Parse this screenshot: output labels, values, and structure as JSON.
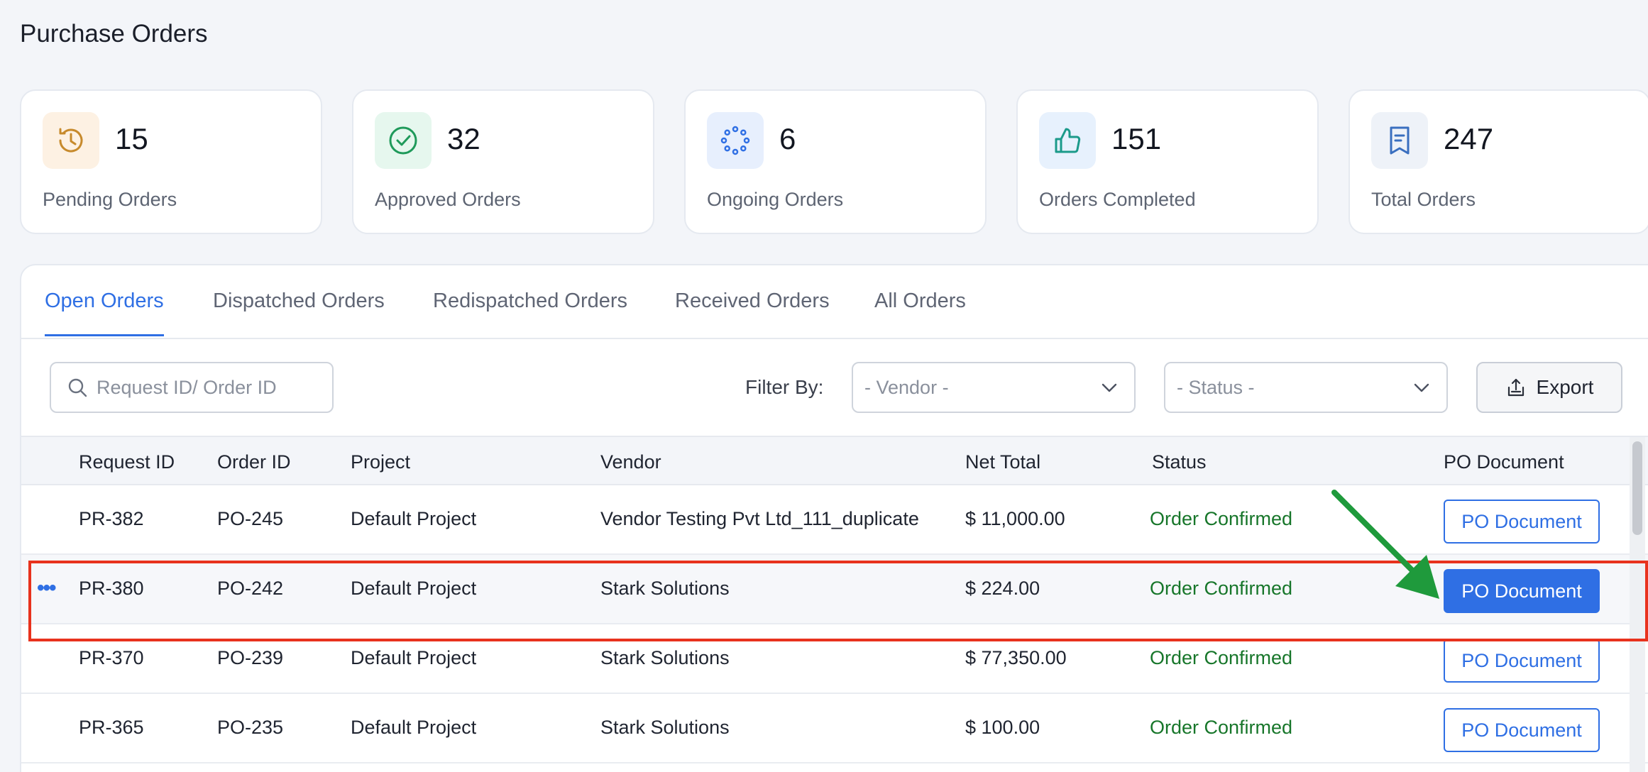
{
  "page": {
    "title": "Purchase Orders"
  },
  "stats": [
    {
      "value": "15",
      "label": "Pending Orders",
      "icon": "history-clock-icon",
      "icon_bg": "#fdf1e3",
      "icon_color": "#c78a2c"
    },
    {
      "value": "32",
      "label": "Approved Orders",
      "icon": "check-circle-icon",
      "icon_bg": "#e6f7ee",
      "icon_color": "#1f9a5a"
    },
    {
      "value": "6",
      "label": "Ongoing Orders",
      "icon": "loading-dots-icon",
      "icon_bg": "#e7effd",
      "icon_color": "#2f6fe4"
    },
    {
      "value": "151",
      "label": "Orders Completed",
      "icon": "thumbs-up-icon",
      "icon_bg": "#e7f1fd",
      "icon_color": "#1b9a8a"
    },
    {
      "value": "247",
      "label": "Total Orders",
      "icon": "receipt-icon",
      "icon_bg": "#eef2f8",
      "icon_color": "#3a6fbf"
    }
  ],
  "tabs": [
    {
      "label": "Open Orders",
      "active": true
    },
    {
      "label": "Dispatched Orders",
      "active": false
    },
    {
      "label": "Redispatched Orders",
      "active": false
    },
    {
      "label": "Received Orders",
      "active": false
    },
    {
      "label": "All Orders",
      "active": false
    }
  ],
  "toolbar": {
    "search_placeholder": "Request ID/ Order ID",
    "filter_label": "Filter By:",
    "vendor_placeholder": "- Vendor -",
    "status_placeholder": "- Status -",
    "export_label": "Export"
  },
  "table": {
    "columns": [
      "Request ID",
      "Order ID",
      "Project",
      "Vendor",
      "Net Total",
      "Status",
      "PO Document"
    ],
    "rows": [
      {
        "request_id": "PR-382",
        "order_id": "PO-245",
        "project": "Default Project",
        "vendor": "Vendor Testing Pvt Ltd_111_duplicate",
        "net_total": "$ 11,000.00",
        "status": "Order Confirmed",
        "po_label": "PO Document"
      },
      {
        "request_id": "PR-380",
        "order_id": "PO-242",
        "project": "Default Project",
        "vendor": "Stark Solutions",
        "net_total": "$ 224.00",
        "status": "Order Confirmed",
        "po_label": "PO Document"
      },
      {
        "request_id": "PR-370",
        "order_id": "PO-239",
        "project": "Default Project",
        "vendor": "Stark Solutions",
        "net_total": "$ 77,350.00",
        "status": "Order Confirmed",
        "po_label": "PO Document"
      },
      {
        "request_id": "PR-365",
        "order_id": "PO-235",
        "project": "Default Project",
        "vendor": "Stark Solutions",
        "net_total": "$ 100.00",
        "status": "Order Confirmed",
        "po_label": "PO Document"
      }
    ]
  },
  "colors": {
    "accent": "#2f6fe4",
    "status_confirmed": "#17762a",
    "highlight_box": "#e8321d",
    "annotation_arrow": "#1f9a3c"
  }
}
